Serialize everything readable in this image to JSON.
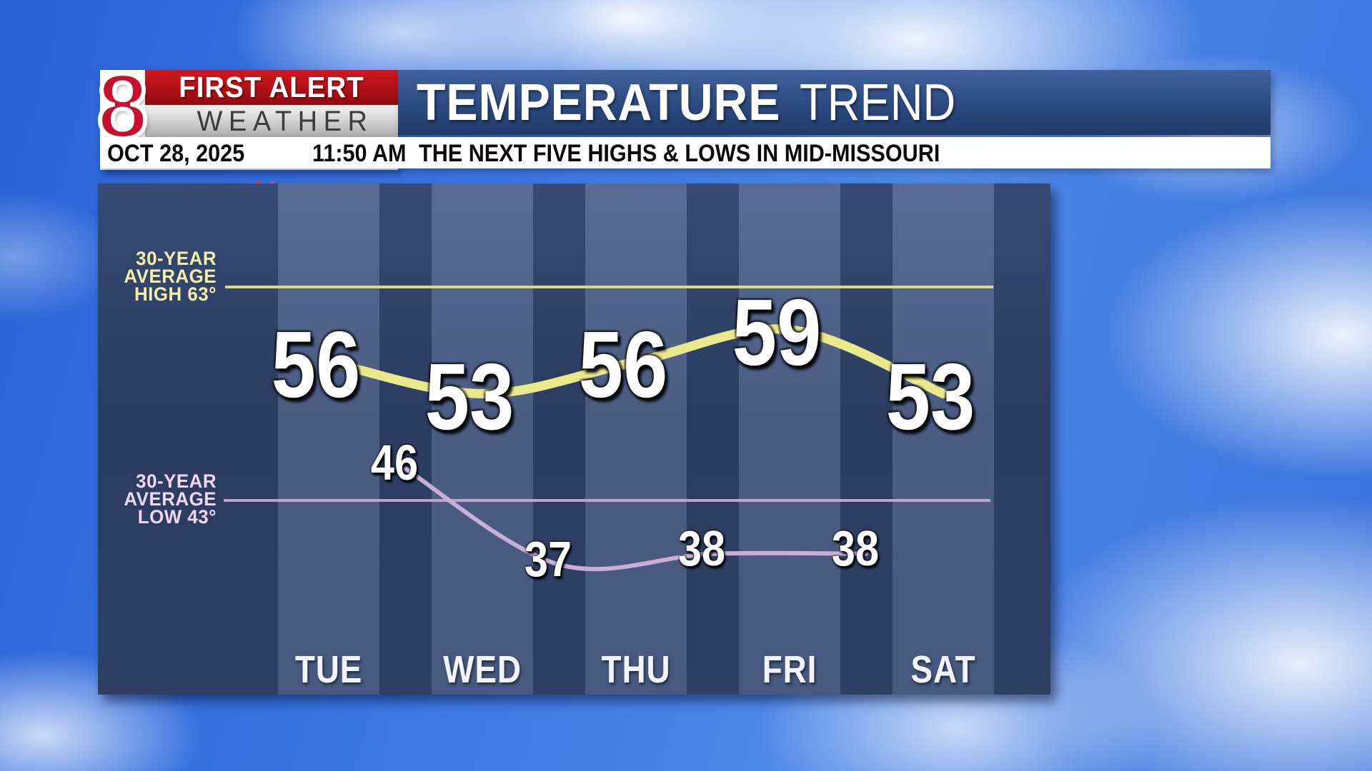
{
  "header": {
    "logo": {
      "channel": "8",
      "brand_line1": "FIRST ALERT",
      "brand_line2": "WEATHER"
    },
    "title_main": "TEMPERATURE",
    "title_sub": "TREND",
    "info_bar": {
      "date": "OCT 28, 2025",
      "time": "11:50 AM",
      "subtitle": "THE NEXT FIVE HIGHS & LOWS IN MID-MISSOURI"
    }
  },
  "chart_data": {
    "type": "line",
    "title": "TEMPERATURE TREND",
    "subtitle": "THE NEXT FIVE HIGHS & LOWS IN MID-MISSOURI",
    "categories": [
      "TUE",
      "WED",
      "THU",
      "FRI",
      "SAT"
    ],
    "series": [
      {
        "name": "daily-highs",
        "values": [
          56,
          53,
          56,
          59,
          53
        ],
        "color": "#e9e98c"
      },
      {
        "name": "overnight-lows",
        "values": [
          46,
          37,
          38,
          38
        ],
        "color": "#cbaed8"
      }
    ],
    "reference_lines": [
      {
        "value": 63,
        "label_lines": [
          "30-YEAR",
          "AVERAGE",
          "HIGH 63°"
        ],
        "line_color": "#dcd87b",
        "text_color": "#f4efa6"
      },
      {
        "value": 43,
        "label_lines": [
          "30-YEAR",
          "AVERAGE",
          "LOW 43°"
        ],
        "line_color": "#bfa2ca",
        "text_color": "#eed8f2"
      }
    ],
    "legend_position": "left-inline",
    "grid": "vertical-day-bands",
    "ylim_visible": [
      35,
      65
    ]
  },
  "colors": {
    "alert_red": "#b01016",
    "banner_blue": "#2c4a80",
    "panel_navy": "#2e3f63",
    "peacock": [
      "#f7c500",
      "#f78f1e",
      "#e23a3c",
      "#9b59b6",
      "#3a7ede",
      "#3fae49"
    ]
  }
}
